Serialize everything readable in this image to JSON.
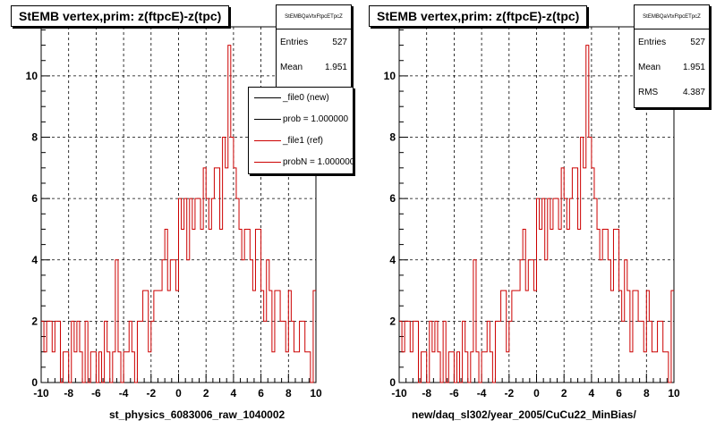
{
  "footer": "",
  "chart_data": [
    {
      "type": "histogram",
      "title": "StEMB  vertex,prim: z(ftpcE)-z(tpc)",
      "xlabel": "st_physics_6083006_raw_1040002",
      "ylabel": "",
      "xlim": [
        -10,
        10
      ],
      "ylim": [
        0,
        11.6
      ],
      "x_ticks": [
        "-10",
        "-8",
        "-6",
        "-4",
        "-2",
        "0",
        "2",
        "4",
        "6",
        "8",
        "10"
      ],
      "y_ticks": [
        "0",
        "2",
        "4",
        "6",
        "8",
        "10"
      ],
      "grid": true,
      "bin_width": 0.2,
      "stats": {
        "name": "StEMBQaVtxFtpcETpcZ",
        "Entries": "527",
        "Mean": "1.951"
      },
      "legend": {
        "position": "top-right",
        "entries": [
          {
            "label": "_file0 (new)",
            "color": "#000000"
          },
          {
            "label": "prob = 1.000000",
            "color": "#000000"
          },
          {
            "label": "_file1 (ref)",
            "color": "#cc0000"
          },
          {
            "label": "probN = 1.000000",
            "color": "#cc0000"
          }
        ]
      },
      "series": [
        {
          "color": "#cc0000",
          "values": [
            2,
            1,
            2,
            2,
            1,
            2,
            2,
            0,
            1,
            1,
            0,
            2,
            1,
            2,
            1,
            0,
            2,
            0,
            1,
            1,
            0,
            1,
            0,
            2,
            1,
            0,
            1,
            4,
            1,
            0,
            1,
            1,
            2,
            1,
            0,
            2,
            2,
            3,
            3,
            1,
            2,
            3,
            3,
            3,
            4,
            5,
            3,
            4,
            4,
            3,
            6,
            5,
            6,
            4,
            6,
            5,
            6,
            6,
            5,
            7,
            6,
            5,
            6,
            7,
            7,
            5,
            8,
            7,
            11,
            8,
            7,
            6,
            5,
            4,
            5,
            5,
            4,
            3,
            5,
            5,
            3,
            2,
            4,
            3,
            1,
            3,
            3,
            2,
            2,
            1,
            3,
            2,
            1,
            1,
            2,
            2,
            1,
            1,
            0,
            3
          ]
        }
      ]
    },
    {
      "type": "histogram",
      "title": "StEMB  vertex,prim: z(ftpcE)-z(tpc)",
      "xlabel": "new/daq_sl302/year_2005/CuCu22_MinBias/",
      "ylabel": "",
      "xlim": [
        -10,
        10
      ],
      "ylim": [
        0,
        11.6
      ],
      "x_ticks": [
        "-10",
        "-8",
        "-6",
        "-4",
        "-2",
        "0",
        "2",
        "4",
        "6",
        "8",
        "10"
      ],
      "y_ticks": [
        "0",
        "2",
        "4",
        "6",
        "8",
        "10"
      ],
      "grid": true,
      "bin_width": 0.2,
      "stats": {
        "name": "StEMBQaVtxFtpcETpcZ",
        "Entries": "527",
        "Mean": "1.951",
        "RMS": "4.387"
      },
      "series": [
        {
          "color": "#cc0000",
          "values": [
            2,
            1,
            2,
            2,
            1,
            2,
            2,
            0,
            1,
            1,
            0,
            2,
            1,
            2,
            1,
            0,
            2,
            0,
            1,
            1,
            0,
            1,
            0,
            2,
            1,
            0,
            1,
            4,
            1,
            0,
            1,
            1,
            2,
            1,
            0,
            2,
            2,
            3,
            3,
            1,
            2,
            3,
            3,
            3,
            4,
            5,
            3,
            4,
            4,
            3,
            6,
            5,
            6,
            4,
            6,
            5,
            6,
            6,
            5,
            7,
            6,
            5,
            6,
            7,
            7,
            5,
            8,
            7,
            11,
            8,
            7,
            6,
            5,
            4,
            5,
            5,
            4,
            3,
            5,
            5,
            3,
            2,
            4,
            3,
            1,
            3,
            3,
            2,
            2,
            1,
            3,
            2,
            1,
            1,
            2,
            2,
            1,
            1,
            0,
            3
          ]
        }
      ]
    }
  ]
}
